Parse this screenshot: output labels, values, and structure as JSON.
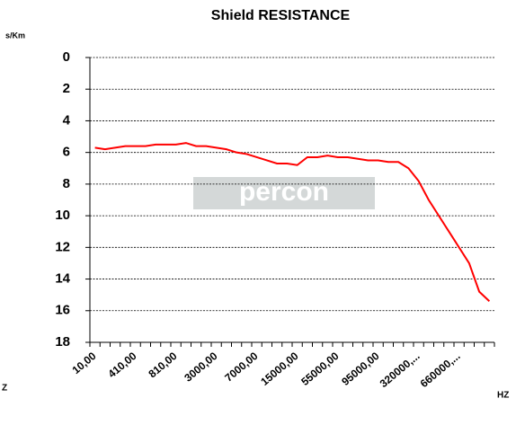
{
  "chart_data": {
    "type": "line",
    "title": "Shield RESISTANCE",
    "y_label": "s/Km",
    "x_label_left": "Z",
    "x_label_right": "HZ",
    "watermark": "percon",
    "categories": [
      "10,00",
      null,
      null,
      null,
      "410,00",
      null,
      null,
      null,
      "810,00",
      null,
      null,
      null,
      "3000,00",
      null,
      null,
      null,
      "7000,00",
      null,
      null,
      null,
      "15000,00",
      null,
      null,
      null,
      "55000,00",
      null,
      null,
      null,
      "95000,00",
      null,
      null,
      null,
      "320000,...",
      null,
      null,
      null,
      "660000,...",
      null,
      null,
      null
    ],
    "series": [
      {
        "name": "Shield RESISTANCE",
        "color": "#ff0000",
        "values": [
          5.7,
          5.8,
          5.7,
          5.6,
          5.6,
          5.6,
          5.5,
          5.5,
          5.5,
          5.4,
          5.6,
          5.6,
          5.7,
          5.8,
          6.0,
          6.1,
          6.3,
          6.5,
          6.7,
          6.7,
          6.8,
          6.3,
          6.3,
          6.2,
          6.3,
          6.3,
          6.4,
          6.5,
          6.5,
          6.6,
          6.6,
          7.0,
          7.8,
          9.0,
          10.0,
          11.0,
          12.0,
          13.0,
          14.8,
          15.4
        ]
      }
    ],
    "ylim": [
      0,
      18
    ],
    "yticks": [
      0,
      2,
      4,
      6,
      8,
      10,
      12,
      14,
      16,
      18
    ],
    "y_inverted": true,
    "grid": true
  }
}
